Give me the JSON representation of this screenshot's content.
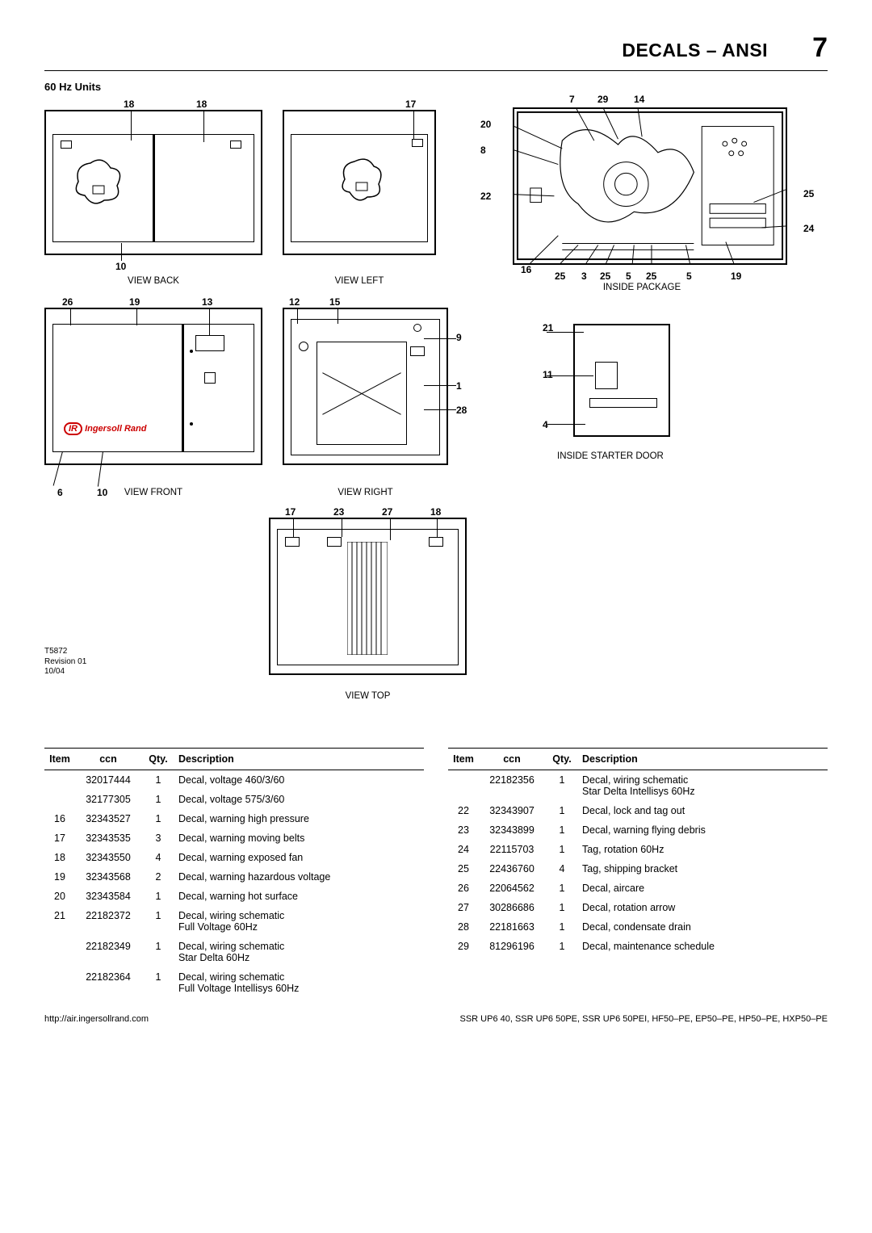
{
  "header": {
    "title": "DECALS – ANSI",
    "page_number": "7"
  },
  "subtitle": "60 Hz Units",
  "revision_note": [
    "T5872",
    "Revision 01",
    "10/04"
  ],
  "views": {
    "back": {
      "caption": "VIEW BACK",
      "callouts": {
        "18a": "18",
        "18b": "18",
        "10": "10"
      }
    },
    "left": {
      "caption": "VIEW LEFT",
      "callouts": {
        "17": "17"
      }
    },
    "inside_package": {
      "caption": "INSIDE PACKAGE",
      "callouts": {
        "7": "7",
        "29": "29",
        "14": "14",
        "20": "20",
        "8": "8",
        "22": "22",
        "25": "25",
        "24": "24",
        "16": "16",
        "25b": "25",
        "3": "3",
        "25c": "25",
        "5": "5",
        "25d": "25",
        "5b": "5",
        "19": "19"
      }
    },
    "front": {
      "caption": "VIEW FRONT",
      "callouts": {
        "26": "26",
        "19": "19",
        "13": "13",
        "6": "6",
        "10": "10"
      }
    },
    "right": {
      "caption": "VIEW RIGHT",
      "callouts": {
        "12": "12",
        "15": "15",
        "9": "9",
        "1": "1",
        "28": "28"
      }
    },
    "starter_door": {
      "caption": "INSIDE STARTER DOOR",
      "callouts": {
        "21": "21",
        "11": "11",
        "4": "4"
      }
    },
    "top": {
      "caption": "VIEW TOP",
      "callouts": {
        "17": "17",
        "23": "23",
        "27": "27",
        "18": "18"
      }
    }
  },
  "logo_text": "Ingersoll Rand",
  "table_headers": {
    "item": "Item",
    "ccn": "ccn",
    "qty": "Qty.",
    "description": "Description"
  },
  "parts_left": [
    {
      "item": "",
      "ccn": "32017444",
      "qty": "1",
      "desc": "Decal, voltage 460/3/60"
    },
    {
      "item": "",
      "ccn": "32177305",
      "qty": "1",
      "desc": "Decal, voltage 575/3/60"
    },
    {
      "item": "16",
      "ccn": "32343527",
      "qty": "1",
      "desc": "Decal, warning high pressure"
    },
    {
      "item": "17",
      "ccn": "32343535",
      "qty": "3",
      "desc": "Decal, warning moving belts"
    },
    {
      "item": "18",
      "ccn": "32343550",
      "qty": "4",
      "desc": "Decal, warning exposed fan"
    },
    {
      "item": "19",
      "ccn": "32343568",
      "qty": "2",
      "desc": "Decal, warning hazardous voltage"
    },
    {
      "item": "20",
      "ccn": "32343584",
      "qty": "1",
      "desc": "Decal, warning hot surface"
    },
    {
      "item": "21",
      "ccn": "22182372",
      "qty": "1",
      "desc": "Decal, wiring schematic\nFull Voltage 60Hz"
    },
    {
      "item": "",
      "ccn": "22182349",
      "qty": "1",
      "desc": "Decal, wiring schematic\nStar Delta 60Hz"
    },
    {
      "item": "",
      "ccn": "22182364",
      "qty": "1",
      "desc": "Decal, wiring schematic\nFull Voltage Intellisys 60Hz"
    }
  ],
  "parts_right": [
    {
      "item": "",
      "ccn": "22182356",
      "qty": "1",
      "desc": "Decal, wiring schematic\nStar Delta Intellisys 60Hz"
    },
    {
      "item": "22",
      "ccn": "32343907",
      "qty": "1",
      "desc": "Decal, lock and tag out"
    },
    {
      "item": "23",
      "ccn": "32343899",
      "qty": "1",
      "desc": "Decal, warning flying debris"
    },
    {
      "item": "24",
      "ccn": "22115703",
      "qty": "1",
      "desc": "Tag, rotation 60Hz"
    },
    {
      "item": "25",
      "ccn": "22436760",
      "qty": "4",
      "desc": "Tag, shipping bracket"
    },
    {
      "item": "26",
      "ccn": "22064562",
      "qty": "1",
      "desc": "Decal, aircare"
    },
    {
      "item": "27",
      "ccn": "30286686",
      "qty": "1",
      "desc": "Decal, rotation arrow"
    },
    {
      "item": "28",
      "ccn": "22181663",
      "qty": "1",
      "desc": "Decal, condensate drain"
    },
    {
      "item": "29",
      "ccn": "81296196",
      "qty": "1",
      "desc": "Decal, maintenance schedule"
    }
  ],
  "footer": {
    "url": "http://air.ingersollrand.com",
    "models": "SSR UP6 40, SSR UP6 50PE, SSR UP6 50PEI, HF50–PE, EP50–PE, HP50–PE, HXP50–PE"
  },
  "colors": {
    "line": "#000000",
    "bg": "#ffffff"
  }
}
